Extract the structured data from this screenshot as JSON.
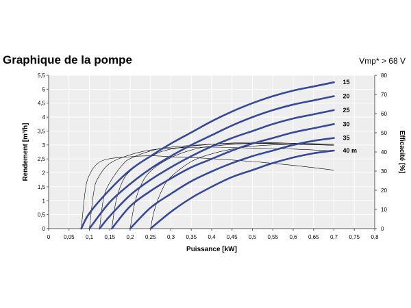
{
  "chart_data": {
    "type": "line",
    "title": "Graphique de la pompe",
    "note": "Vmp* > 68 V",
    "xlabel": "Puissance [kW]",
    "ylabel": "Rendement [m³/h]",
    "y2label": "Efficacité [%]",
    "xlim": [
      0,
      0.8
    ],
    "ylim": [
      0,
      5.5
    ],
    "y2lim": [
      0,
      80
    ],
    "xticks": [
      "0",
      "0,05",
      "0,1",
      "0,15",
      "0,2",
      "0,25",
      "0,3",
      "0,35",
      "0,4",
      "0,45",
      "0,5",
      "0,55",
      "0,6",
      "0,65",
      "0,7",
      "0,75",
      "0,8"
    ],
    "yticks": [
      "0",
      "0,5",
      "1",
      "1,5",
      "2",
      "2,5",
      "3",
      "3,5",
      "4",
      "4,5",
      "5",
      "5,5"
    ],
    "y2ticks": [
      "0",
      "10",
      "20",
      "30",
      "40",
      "50",
      "60",
      "70",
      "80"
    ],
    "grid": true,
    "colors": {
      "flow": "#35489a",
      "efficiency": "#000000"
    },
    "flow_series": [
      {
        "name": "15",
        "x": [
          0.08,
          0.1,
          0.15,
          0.2,
          0.25,
          0.3,
          0.35,
          0.4,
          0.45,
          0.5,
          0.55,
          0.6,
          0.65,
          0.7
        ],
        "y": [
          0,
          0.55,
          1.4,
          2.1,
          2.6,
          3.05,
          3.45,
          3.85,
          4.2,
          4.5,
          4.75,
          4.95,
          5.1,
          5.25
        ]
      },
      {
        "name": "20",
        "x": [
          0.1,
          0.15,
          0.2,
          0.25,
          0.3,
          0.35,
          0.4,
          0.45,
          0.5,
          0.55,
          0.6,
          0.65,
          0.7
        ],
        "y": [
          0,
          0.95,
          1.6,
          2.15,
          2.6,
          3.0,
          3.35,
          3.7,
          4.0,
          4.25,
          4.45,
          4.6,
          4.75
        ]
      },
      {
        "name": "25",
        "x": [
          0.125,
          0.15,
          0.2,
          0.25,
          0.3,
          0.35,
          0.4,
          0.45,
          0.5,
          0.55,
          0.6,
          0.65,
          0.7
        ],
        "y": [
          0,
          0.45,
          1.2,
          1.75,
          2.2,
          2.6,
          2.95,
          3.25,
          3.5,
          3.75,
          3.95,
          4.1,
          4.25
        ]
      },
      {
        "name": "30",
        "x": [
          0.155,
          0.2,
          0.25,
          0.3,
          0.35,
          0.4,
          0.45,
          0.5,
          0.55,
          0.6,
          0.65,
          0.7
        ],
        "y": [
          0,
          0.8,
          1.35,
          1.8,
          2.2,
          2.5,
          2.8,
          3.05,
          3.25,
          3.45,
          3.6,
          3.75
        ]
      },
      {
        "name": "35",
        "x": [
          0.2,
          0.25,
          0.3,
          0.35,
          0.4,
          0.45,
          0.5,
          0.55,
          0.6,
          0.65,
          0.7
        ],
        "y": [
          0,
          0.75,
          1.25,
          1.7,
          2.05,
          2.35,
          2.6,
          2.8,
          3.0,
          3.15,
          3.25
        ]
      },
      {
        "name": "40 m",
        "x": [
          0.25,
          0.3,
          0.35,
          0.4,
          0.45,
          0.5,
          0.55,
          0.6,
          0.65,
          0.7
        ],
        "y": [
          0,
          0.6,
          1.1,
          1.5,
          1.85,
          2.1,
          2.35,
          2.55,
          2.7,
          2.8
        ]
      }
    ],
    "efficiency_series": [
      {
        "x": [
          0.08,
          0.09,
          0.1,
          0.12,
          0.15,
          0.2,
          0.25,
          0.3,
          0.4,
          0.5,
          0.6,
          0.7
        ],
        "y": [
          0,
          20,
          28,
          34,
          36.5,
          37.5,
          38,
          37.5,
          36.5,
          35,
          33,
          30.5
        ]
      },
      {
        "x": [
          0.1,
          0.11,
          0.12,
          0.15,
          0.2,
          0.25,
          0.3,
          0.4,
          0.5,
          0.6,
          0.7
        ],
        "y": [
          0,
          18,
          26,
          34,
          38.5,
          41,
          42,
          42.5,
          42,
          41.5,
          40.5
        ]
      },
      {
        "x": [
          0.125,
          0.135,
          0.15,
          0.18,
          0.2,
          0.25,
          0.3,
          0.4,
          0.5,
          0.6,
          0.7
        ],
        "y": [
          0,
          16,
          24,
          33,
          36.5,
          40.5,
          42.5,
          44,
          44.5,
          44,
          43.5
        ]
      },
      {
        "x": [
          0.155,
          0.165,
          0.18,
          0.2,
          0.25,
          0.3,
          0.4,
          0.5,
          0.6,
          0.7
        ],
        "y": [
          0,
          14,
          24,
          30,
          37.5,
          41.5,
          44,
          45,
          44.5,
          44
        ]
      },
      {
        "x": [
          0.2,
          0.21,
          0.225,
          0.25,
          0.3,
          0.35,
          0.4,
          0.5,
          0.6,
          0.7
        ],
        "y": [
          0,
          12,
          22,
          30,
          37,
          41,
          43,
          44.5,
          44.5,
          44
        ]
      },
      {
        "x": [
          0.25,
          0.26,
          0.28,
          0.3,
          0.35,
          0.4,
          0.45,
          0.5,
          0.6,
          0.7
        ],
        "y": [
          0,
          10,
          21,
          27,
          35,
          39,
          41.5,
          43,
          44,
          43.5
        ]
      }
    ]
  }
}
